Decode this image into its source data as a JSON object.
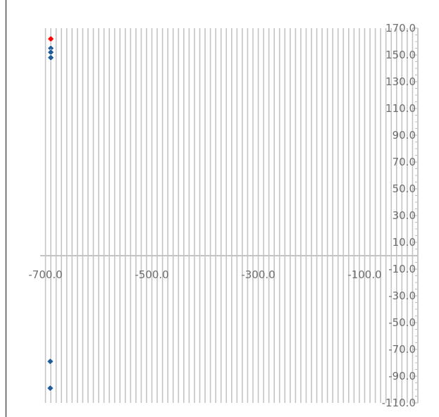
{
  "chart_data": {
    "type": "scatter",
    "title": "",
    "xlabel": "",
    "ylabel": "",
    "xlim": [
      -710,
      0
    ],
    "ylim": [
      -110,
      170
    ],
    "x_major_step": 200,
    "x_minor_step": 10,
    "y_major_step": 20,
    "y_minor_step": 5,
    "grid": true,
    "legend": "none",
    "x_tick_labels": [
      "-700.0",
      "-500.0",
      "-300.0",
      "-100.0"
    ],
    "y_tick_labels": [
      "170.0",
      "150.0",
      "130.0",
      "110.0",
      "90.0",
      "70.0",
      "50.0",
      "30.0",
      "10.0",
      "-10.0",
      "-30.0",
      "-50.0",
      "-70.0",
      "-90.0",
      "-110.0"
    ],
    "series": [
      {
        "color": "#1f5c99",
        "marker": "diamond",
        "points": [
          {
            "x": -690,
            "y": 155
          },
          {
            "x": -690,
            "y": 152
          },
          {
            "x": -690,
            "y": 148
          },
          {
            "x": -691,
            "y": -79
          },
          {
            "x": -691,
            "y": -99
          }
        ]
      },
      {
        "color": "#ff0000",
        "marker": "diamond",
        "points": [
          {
            "x": -690,
            "y": 162
          }
        ]
      }
    ]
  }
}
